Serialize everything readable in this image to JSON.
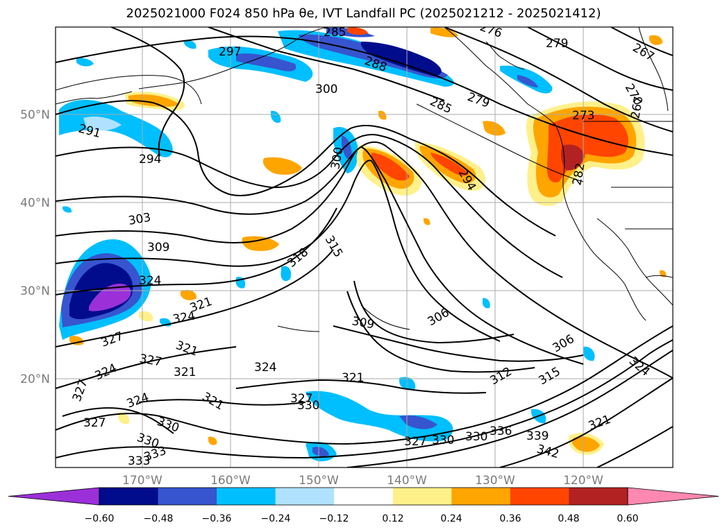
{
  "title": "2025021000 F024 850 hPa θe, IVT Landfall PC (2025021212 - 2025021412)",
  "latitudes": [
    "50°N",
    "40°N",
    "30°N",
    "20°N"
  ],
  "longitudes": [
    "170°W",
    "160°W",
    "150°W",
    "140°W",
    "130°W",
    "120°W"
  ],
  "colorbar": {
    "ticks": [
      "−0.60",
      "−0.48",
      "−0.36",
      "−0.24",
      "−0.12",
      "0.12",
      "0.24",
      "0.36",
      "0.48",
      "0.60"
    ],
    "colors": [
      "#9b30d9",
      "#000c8c",
      "#3655cf",
      "#00bfff",
      "#b0e2ff",
      "#ffffff",
      "#fff08a",
      "#ffa500",
      "#ff4500",
      "#b22222",
      "#ff88b0"
    ]
  },
  "contour_labels": [
    "285",
    "297",
    "288",
    "300",
    "285",
    "279",
    "276",
    "279",
    "267",
    "270",
    "267",
    "273",
    "291",
    "294",
    "300",
    "294",
    "282",
    "303",
    "309",
    "315",
    "318",
    "324",
    "321",
    "324",
    "327",
    "321",
    "321",
    "309",
    "306",
    "306",
    "324",
    "312",
    "315",
    "321",
    "327",
    "324",
    "327",
    "330",
    "321",
    "327",
    "330",
    "333",
    "330",
    "330",
    "336",
    "339",
    "342",
    "333",
    "324",
    "327",
    "330",
    "327",
    "324",
    "321"
  ]
}
